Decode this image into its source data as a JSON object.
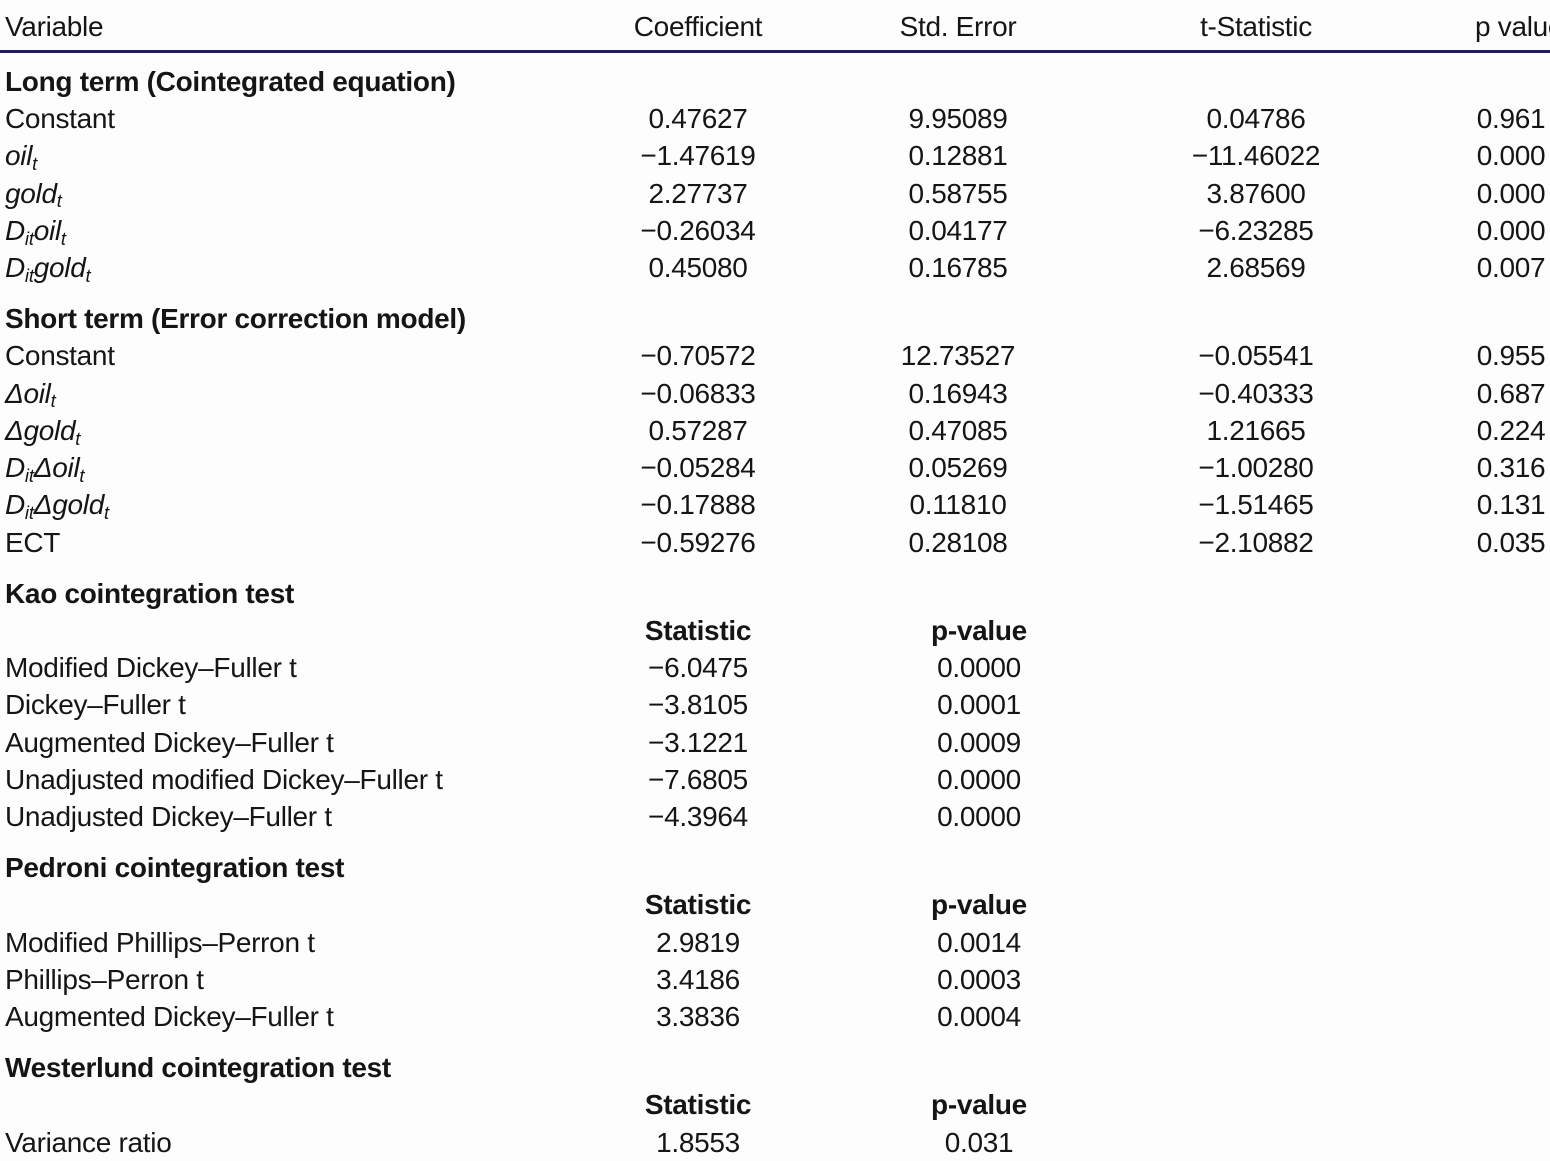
{
  "rule_color": "#211c62",
  "header": {
    "columns": [
      "Variable",
      "Coefficient",
      "Std. Error",
      "t-Statistic",
      "p value"
    ]
  },
  "sections": [
    {
      "title": "Long term (Cointegrated equation)",
      "kind": "coef",
      "rows": [
        {
          "name": [
            {
              "t": "Constant"
            }
          ],
          "values": [
            "0.47627",
            "9.95089",
            "0.04786",
            "0.961"
          ]
        },
        {
          "name": [
            {
              "t": "oil",
              "i": true
            },
            {
              "t": "t",
              "i": true,
              "s": true
            }
          ],
          "values": [
            "−1.47619",
            "0.12881",
            "−11.46022",
            "0.000"
          ]
        },
        {
          "name": [
            {
              "t": "gold",
              "i": true
            },
            {
              "t": "t",
              "i": true,
              "s": true
            }
          ],
          "values": [
            "2.27737",
            "0.58755",
            "3.87600",
            "0.000"
          ]
        },
        {
          "name": [
            {
              "t": "D",
              "i": true
            },
            {
              "t": "it",
              "i": true,
              "s": true
            },
            {
              "t": "oil",
              "i": true
            },
            {
              "t": "t",
              "i": true,
              "s": true
            }
          ],
          "values": [
            "−0.26034",
            "0.04177",
            "−6.23285",
            "0.000"
          ]
        },
        {
          "name": [
            {
              "t": "D",
              "i": true
            },
            {
              "t": "it",
              "i": true,
              "s": true
            },
            {
              "t": "gold",
              "i": true
            },
            {
              "t": "t",
              "i": true,
              "s": true
            }
          ],
          "values": [
            "0.45080",
            "0.16785",
            "2.68569",
            "0.007"
          ]
        }
      ]
    },
    {
      "title": "Short term (Error correction model)",
      "kind": "coef",
      "rows": [
        {
          "name": [
            {
              "t": "Constant"
            }
          ],
          "values": [
            "−0.70572",
            "12.73527",
            "−0.05541",
            "0.955"
          ]
        },
        {
          "name": [
            {
              "t": "Δoil",
              "i": true
            },
            {
              "t": "t",
              "i": true,
              "s": true
            }
          ],
          "values": [
            "−0.06833",
            "0.16943",
            "−0.40333",
            "0.687"
          ]
        },
        {
          "name": [
            {
              "t": "Δgold",
              "i": true
            },
            {
              "t": "t",
              "i": true,
              "s": true
            }
          ],
          "values": [
            "0.57287",
            "0.47085",
            "1.21665",
            "0.224"
          ]
        },
        {
          "name": [
            {
              "t": "D",
              "i": true
            },
            {
              "t": "it",
              "i": true,
              "s": true
            },
            {
              "t": "Δoil",
              "i": true
            },
            {
              "t": "t",
              "i": true,
              "s": true
            }
          ],
          "values": [
            "−0.05284",
            "0.05269",
            "−1.00280",
            "0.316"
          ]
        },
        {
          "name": [
            {
              "t": "D",
              "i": true
            },
            {
              "t": "it",
              "i": true,
              "s": true
            },
            {
              "t": "Δgold",
              "i": true
            },
            {
              "t": "t",
              "i": true,
              "s": true
            }
          ],
          "values": [
            "−0.17888",
            "0.11810",
            "−1.51465",
            "0.131"
          ]
        },
        {
          "name": [
            {
              "t": "ECT"
            }
          ],
          "values": [
            "−0.59276",
            "0.28108",
            "−2.10882",
            "0.035"
          ]
        }
      ]
    },
    {
      "title": "Kao cointegration test",
      "kind": "test",
      "subheader": [
        "Statistic",
        "p-value"
      ],
      "rows": [
        {
          "name": [
            {
              "t": "Modified Dickey–Fuller t"
            }
          ],
          "values": [
            "−6.0475",
            "0.0000"
          ]
        },
        {
          "name": [
            {
              "t": "Dickey–Fuller t"
            }
          ],
          "values": [
            "−3.8105",
            "0.0001"
          ]
        },
        {
          "name": [
            {
              "t": "Augmented Dickey–Fuller t"
            }
          ],
          "values": [
            "−3.1221",
            "0.0009"
          ]
        },
        {
          "name": [
            {
              "t": "Unadjusted modified Dickey–Fuller t"
            }
          ],
          "values": [
            "−7.6805",
            "0.0000"
          ]
        },
        {
          "name": [
            {
              "t": "Unadjusted Dickey–Fuller t"
            }
          ],
          "values": [
            "−4.3964",
            "0.0000"
          ]
        }
      ]
    },
    {
      "title": "Pedroni cointegration test",
      "kind": "test",
      "subheader": [
        "Statistic",
        "p-value"
      ],
      "rows": [
        {
          "name": [
            {
              "t": "Modified Phillips–Perron t"
            }
          ],
          "values": [
            "2.9819",
            "0.0014"
          ]
        },
        {
          "name": [
            {
              "t": "Phillips–Perron t"
            }
          ],
          "values": [
            "3.4186",
            "0.0003"
          ]
        },
        {
          "name": [
            {
              "t": "Augmented Dickey–Fuller t"
            }
          ],
          "values": [
            "3.3836",
            "0.0004"
          ]
        }
      ]
    },
    {
      "title": "Westerlund cointegration test",
      "kind": "test",
      "subheader": [
        "Statistic",
        "p-value"
      ],
      "rows": [
        {
          "name": [
            {
              "t": "Variance ratio"
            }
          ],
          "values": [
            "1.8553",
            "0.031"
          ]
        }
      ]
    }
  ]
}
